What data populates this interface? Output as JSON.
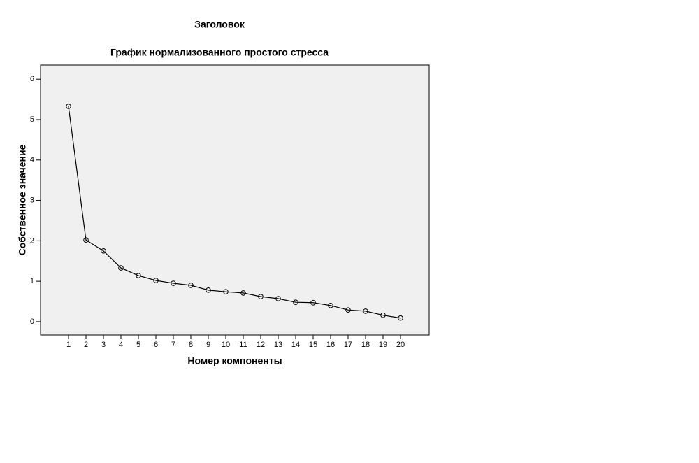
{
  "chart_data": {
    "type": "line",
    "heading": "Заголовок",
    "title": "График нормализованного простого стресса",
    "x_label": "Номер компоненты",
    "y_label": "Собственное значение",
    "x": [
      1,
      2,
      3,
      4,
      5,
      6,
      7,
      8,
      9,
      10,
      11,
      12,
      13,
      14,
      15,
      16,
      17,
      18,
      19,
      20
    ],
    "series": [
      {
        "color": "#000000",
        "marker": "circle",
        "values": [
          5.33,
          2.02,
          1.75,
          1.33,
          1.14,
          1.02,
          0.95,
          0.9,
          0.78,
          0.74,
          0.71,
          0.62,
          0.57,
          0.48,
          0.47,
          0.4,
          0.29,
          0.26,
          0.16,
          0.09
        ]
      }
    ],
    "xlim": [
      -0.6,
      21.64
    ],
    "xticks": [
      1,
      2,
      3,
      4,
      5,
      6,
      7,
      8,
      9,
      10,
      11,
      12,
      13,
      14,
      15,
      16,
      17,
      18,
      19,
      20
    ],
    "ylim": [
      -0.33,
      6.35
    ],
    "yticks": [
      0,
      1,
      2,
      3,
      4,
      5,
      6
    ],
    "plot_background": "#f0f0f0"
  }
}
